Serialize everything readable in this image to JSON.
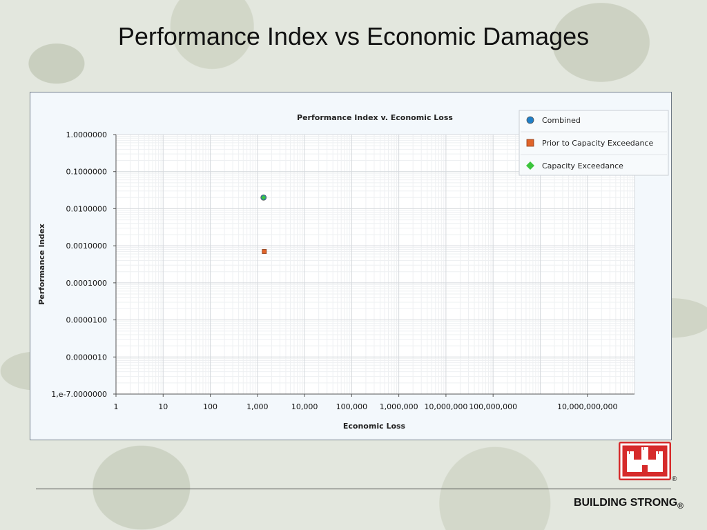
{
  "slide": {
    "title": "Performance Index vs Economic Damages",
    "footer_text": "BUILDING STRONG",
    "footer_mark": "®",
    "logo_mark": "®",
    "accent_color": "#d62a2a"
  },
  "chart_data": {
    "type": "scatter",
    "title": "Performance Index v. Economic Loss",
    "xlabel": "Economic Loss",
    "ylabel": "Performance Index",
    "x_scale": "log",
    "y_scale": "log",
    "xlim": [
      1,
      100000000000
    ],
    "ylim": [
      1e-07,
      1
    ],
    "x_ticks": [
      {
        "value": 1,
        "label": "1"
      },
      {
        "value": 10,
        "label": "10"
      },
      {
        "value": 100,
        "label": "100"
      },
      {
        "value": 1000,
        "label": "1,000"
      },
      {
        "value": 10000,
        "label": "10,000"
      },
      {
        "value": 100000,
        "label": "100,000"
      },
      {
        "value": 1000000,
        "label": "1,000,000"
      },
      {
        "value": 10000000,
        "label": "10,000,000"
      },
      {
        "value": 100000000,
        "label": "100,000,000"
      },
      {
        "value": 10000000000,
        "label": "10,000,000,000"
      }
    ],
    "y_ticks": [
      {
        "value": 1,
        "label": "1.0000000"
      },
      {
        "value": 0.1,
        "label": "0.1000000"
      },
      {
        "value": 0.01,
        "label": "0.0100000"
      },
      {
        "value": 0.001,
        "label": "0.0010000"
      },
      {
        "value": 0.0001,
        "label": "0.0001000"
      },
      {
        "value": 1e-05,
        "label": "0.0000100"
      },
      {
        "value": 1e-06,
        "label": "0.0000010"
      },
      {
        "value": 1e-07,
        "label": "1,e-7.0000000"
      }
    ],
    "grid": true,
    "legend_position": "top-right",
    "series": [
      {
        "name": "Combined",
        "marker": "circle",
        "color": "#1f7fc8",
        "points": [
          {
            "x": 1350,
            "y": 0.02
          }
        ]
      },
      {
        "name": "Prior to Capacity Exceedance",
        "marker": "square",
        "color": "#e0642a",
        "points": [
          {
            "x": 1400,
            "y": 0.0007
          }
        ]
      },
      {
        "name": "Capacity Exceedance",
        "marker": "diamond",
        "color": "#3cc43c",
        "points": [
          {
            "x": 1350,
            "y": 0.02
          }
        ]
      }
    ]
  }
}
